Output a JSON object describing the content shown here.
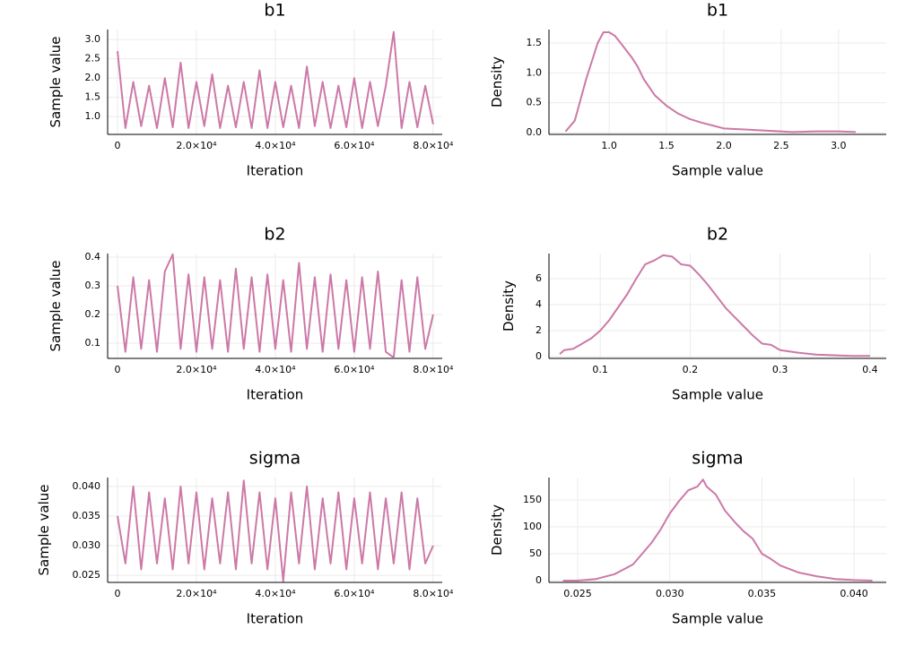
{
  "chart_data": [
    {
      "type": "line",
      "title": "b1",
      "xlabel": "Iteration",
      "ylabel": "Sample value",
      "color": "#cc79a7",
      "grid": true,
      "xlim": [
        -2500,
        82300
      ],
      "ylim": [
        0.535,
        3.26
      ],
      "xticks": [
        0,
        {
          "value": 20000,
          "label": "2.0×10⁴"
        },
        {
          "value": 40000,
          "label": "4.0×10⁴"
        },
        {
          "value": 60000,
          "label": "6.0×10⁴"
        },
        {
          "value": 80000,
          "label": "8.0×10⁴"
        }
      ],
      "yticks": [
        {
          "value": 1,
          "label": "1.0"
        },
        1.5,
        {
          "value": 2,
          "label": "2.0"
        },
        2.5,
        {
          "value": 3,
          "label": "3.0"
        }
      ],
      "x": [
        0,
        2000,
        4000,
        6000,
        8000,
        10000,
        12000,
        14000,
        16000,
        18000,
        20000,
        22000,
        24000,
        26000,
        28000,
        30000,
        32000,
        34000,
        36000,
        38000,
        40000,
        42000,
        44000,
        46000,
        48000,
        50000,
        52000,
        54000,
        56000,
        58000,
        60000,
        62000,
        64000,
        66000,
        68000,
        70000,
        72000,
        74000,
        76000,
        78000,
        80000
      ],
      "values": [
        2.7,
        0.7,
        1.9,
        0.75,
        1.8,
        0.7,
        2.0,
        0.72,
        2.4,
        0.7,
        1.9,
        0.75,
        2.1,
        0.7,
        1.8,
        0.72,
        1.9,
        0.7,
        2.2,
        0.7,
        1.9,
        0.72,
        1.8,
        0.7,
        2.3,
        0.75,
        1.9,
        0.7,
        1.8,
        0.72,
        2.0,
        0.7,
        1.9,
        0.75,
        1.8,
        3.2,
        0.7,
        1.9,
        0.72,
        1.8,
        0.8
      ]
    },
    {
      "type": "line",
      "title": "b1",
      "xlabel": "Sample value",
      "ylabel": "Density",
      "color": "#cc79a7",
      "grid": true,
      "xlim": [
        0.475,
        3.416
      ],
      "ylim": [
        -0.03,
        1.725
      ],
      "xticks": [
        {
          "value": 1,
          "label": "1.0"
        },
        1.5,
        {
          "value": 2,
          "label": "2.0"
        },
        2.5,
        {
          "value": 3,
          "label": "3.0"
        }
      ],
      "yticks": [
        {
          "value": 0,
          "label": "0.0"
        },
        0.5,
        {
          "value": 1,
          "label": "1.0"
        },
        1.5
      ],
      "x": [
        0.62,
        0.7,
        0.8,
        0.9,
        0.95,
        1.0,
        1.05,
        1.1,
        1.2,
        1.25,
        1.3,
        1.4,
        1.5,
        1.6,
        1.7,
        1.8,
        1.9,
        2.0,
        2.2,
        2.4,
        2.6,
        2.8,
        3.0,
        3.15
      ],
      "values": [
        0.02,
        0.2,
        0.9,
        1.5,
        1.68,
        1.68,
        1.62,
        1.5,
        1.25,
        1.1,
        0.9,
        0.62,
        0.45,
        0.32,
        0.23,
        0.17,
        0.12,
        0.07,
        0.05,
        0.03,
        0.01,
        0.02,
        0.02,
        0.01
      ]
    },
    {
      "type": "line",
      "title": "b2",
      "xlabel": "Iteration",
      "ylabel": "Sample value",
      "color": "#cc79a7",
      "grid": true,
      "xlim": [
        -2500,
        82300
      ],
      "ylim": [
        0.047,
        0.4125
      ],
      "xticks": [
        0,
        {
          "value": 20000,
          "label": "2.0×10⁴"
        },
        {
          "value": 40000,
          "label": "4.0×10⁴"
        },
        {
          "value": 60000,
          "label": "6.0×10⁴"
        },
        {
          "value": 80000,
          "label": "8.0×10⁴"
        }
      ],
      "yticks": [
        0.1,
        0.2,
        0.3,
        0.4
      ],
      "x": [
        0,
        2000,
        4000,
        6000,
        8000,
        10000,
        12000,
        14000,
        16000,
        18000,
        20000,
        22000,
        24000,
        26000,
        28000,
        30000,
        32000,
        34000,
        36000,
        38000,
        40000,
        42000,
        44000,
        46000,
        48000,
        50000,
        52000,
        54000,
        56000,
        58000,
        60000,
        62000,
        64000,
        66000,
        68000,
        70000,
        72000,
        74000,
        76000,
        78000,
        80000
      ],
      "values": [
        0.3,
        0.07,
        0.33,
        0.08,
        0.32,
        0.07,
        0.35,
        0.41,
        0.08,
        0.34,
        0.07,
        0.33,
        0.08,
        0.32,
        0.07,
        0.36,
        0.08,
        0.33,
        0.07,
        0.34,
        0.08,
        0.32,
        0.07,
        0.38,
        0.08,
        0.33,
        0.07,
        0.34,
        0.08,
        0.32,
        0.07,
        0.33,
        0.08,
        0.35,
        0.07,
        0.05,
        0.32,
        0.07,
        0.33,
        0.08,
        0.2
      ]
    },
    {
      "type": "line",
      "title": "b2",
      "xlabel": "Sample value",
      "ylabel": "Density",
      "color": "#cc79a7",
      "grid": true,
      "xlim": [
        0.043,
        0.418
      ],
      "ylim": [
        -0.14,
        7.93
      ],
      "xticks": [
        0.1,
        0.2,
        0.3,
        0.4
      ],
      "yticks": [
        0,
        2,
        4,
        6
      ],
      "x": [
        0.055,
        0.06,
        0.07,
        0.08,
        0.09,
        0.1,
        0.11,
        0.12,
        0.13,
        0.14,
        0.15,
        0.16,
        0.17,
        0.18,
        0.19,
        0.2,
        0.21,
        0.22,
        0.23,
        0.24,
        0.25,
        0.26,
        0.27,
        0.28,
        0.29,
        0.3,
        0.32,
        0.34,
        0.36,
        0.38,
        0.4
      ],
      "values": [
        0.2,
        0.5,
        0.6,
        1.0,
        1.4,
        2.0,
        2.8,
        3.8,
        4.8,
        6.0,
        7.1,
        7.4,
        7.8,
        7.7,
        7.1,
        7.0,
        6.3,
        5.5,
        4.6,
        3.7,
        3.0,
        2.3,
        1.6,
        1.0,
        0.9,
        0.5,
        0.3,
        0.15,
        0.1,
        0.05,
        0.05
      ]
    },
    {
      "type": "line",
      "title": "sigma",
      "xlabel": "Iteration",
      "ylabel": "Sample value",
      "color": "#cc79a7",
      "grid": true,
      "xlim": [
        -2500,
        82300
      ],
      "ylim": [
        0.0238,
        0.0415
      ],
      "xticks": [
        0,
        {
          "value": 20000,
          "label": "2.0×10⁴"
        },
        {
          "value": 40000,
          "label": "4.0×10⁴"
        },
        {
          "value": 60000,
          "label": "6.0×10⁴"
        },
        {
          "value": 80000,
          "label": "8.0×10⁴"
        }
      ],
      "yticks": [
        0.025,
        {
          "value": 0.03,
          "label": "0.030"
        },
        0.035,
        {
          "value": 0.04,
          "label": "0.040"
        }
      ],
      "x": [
        0,
        2000,
        4000,
        6000,
        8000,
        10000,
        12000,
        14000,
        16000,
        18000,
        20000,
        22000,
        24000,
        26000,
        28000,
        30000,
        32000,
        34000,
        36000,
        38000,
        40000,
        42000,
        44000,
        46000,
        48000,
        50000,
        52000,
        54000,
        56000,
        58000,
        60000,
        62000,
        64000,
        66000,
        68000,
        70000,
        72000,
        74000,
        76000,
        78000,
        80000
      ],
      "values": [
        0.035,
        0.027,
        0.04,
        0.026,
        0.039,
        0.027,
        0.038,
        0.026,
        0.04,
        0.027,
        0.039,
        0.026,
        0.038,
        0.027,
        0.039,
        0.026,
        0.041,
        0.027,
        0.039,
        0.026,
        0.038,
        0.024,
        0.039,
        0.027,
        0.04,
        0.026,
        0.038,
        0.027,
        0.039,
        0.026,
        0.038,
        0.027,
        0.039,
        0.026,
        0.038,
        0.027,
        0.039,
        0.026,
        0.038,
        0.027,
        0.03
      ]
    },
    {
      "type": "line",
      "title": "sigma",
      "xlabel": "Sample value",
      "ylabel": "Density",
      "color": "#cc79a7",
      "grid": true,
      "xlim": [
        0.02344,
        0.04175
      ],
      "ylim": [
        -3.3,
        191.7
      ],
      "xticks": [
        0.025,
        {
          "value": 0.03,
          "label": "0.030"
        },
        0.035,
        {
          "value": 0.04,
          "label": "0.040"
        }
      ],
      "yticks": [
        0,
        50,
        100,
        150
      ],
      "x": [
        0.0242,
        0.025,
        0.026,
        0.027,
        0.028,
        0.029,
        0.0295,
        0.03,
        0.0305,
        0.031,
        0.0315,
        0.0318,
        0.032,
        0.0325,
        0.033,
        0.0335,
        0.034,
        0.0345,
        0.035,
        0.0355,
        0.036,
        0.037,
        0.038,
        0.039,
        0.04,
        0.041
      ],
      "values": [
        0,
        0,
        3,
        12,
        30,
        70,
        95,
        125,
        148,
        168,
        175,
        188,
        175,
        160,
        130,
        110,
        92,
        78,
        50,
        40,
        28,
        15,
        8,
        3,
        1,
        0
      ]
    }
  ]
}
